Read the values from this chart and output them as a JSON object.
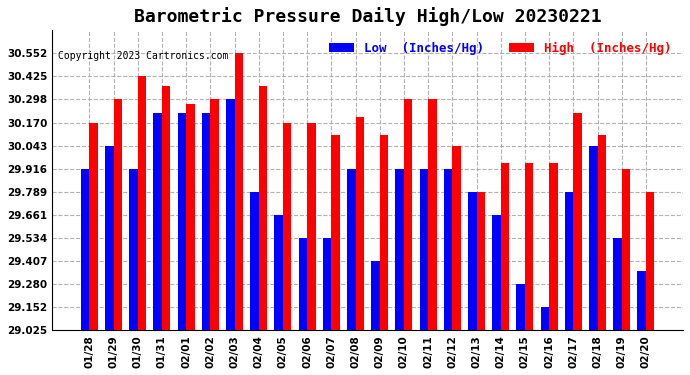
{
  "title": "Barometric Pressure Daily High/Low 20230221",
  "copyright": "Copyright 2023 Cartronics.com",
  "legend_low": "Low  (Inches/Hg)",
  "legend_high": "High  (Inches/Hg)",
  "dates": [
    "01/28",
    "01/29",
    "01/30",
    "01/31",
    "02/01",
    "02/02",
    "02/03",
    "02/04",
    "02/05",
    "02/06",
    "02/07",
    "02/08",
    "02/09",
    "02/10",
    "02/11",
    "02/12",
    "02/13",
    "02/14",
    "02/15",
    "02/16",
    "02/17",
    "02/18",
    "02/19",
    "02/20"
  ],
  "high": [
    30.17,
    30.298,
    30.425,
    30.37,
    30.27,
    30.298,
    30.552,
    30.37,
    30.17,
    30.17,
    30.1,
    30.2,
    30.1,
    30.298,
    30.298,
    30.043,
    29.789,
    29.95,
    29.95,
    29.95,
    30.225,
    30.1,
    29.916,
    29.789
  ],
  "low": [
    29.916,
    30.043,
    29.916,
    30.225,
    30.225,
    30.225,
    30.298,
    29.789,
    29.661,
    29.534,
    29.534,
    29.916,
    29.407,
    29.916,
    29.916,
    29.916,
    29.789,
    29.661,
    29.28,
    29.152,
    29.789,
    30.043,
    29.534,
    29.352
  ],
  "ylim_min": 29.025,
  "ylim_max": 30.679,
  "yticks": [
    29.025,
    29.152,
    29.28,
    29.407,
    29.534,
    29.661,
    29.789,
    29.916,
    30.043,
    30.17,
    30.298,
    30.425,
    30.552
  ],
  "bar_width": 0.35,
  "color_low": "#0000ff",
  "color_high": "#ff0000",
  "bg_color": "#ffffff",
  "grid_color": "#aaaaaa",
  "title_fontsize": 13,
  "tick_fontsize": 7.5,
  "legend_fontsize": 9
}
